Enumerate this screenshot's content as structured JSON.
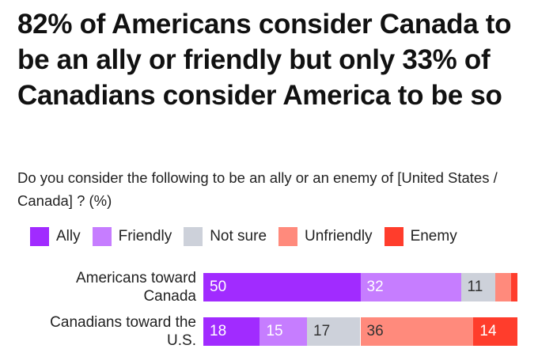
{
  "chart_data": {
    "type": "bar",
    "stacked": true,
    "orientation": "horizontal",
    "title": "82% of Americans consider Canada to be an ally or friendly but only 33% of Canadians consider America to be so",
    "subtitle": "Do you consider the following to be an ally or an enemy of [United States / Canada] ? (%)",
    "categories": [
      "Americans toward Canada",
      "Canadians toward the U.S."
    ],
    "category_lines": [
      [
        "Americans toward",
        "Canada"
      ],
      [
        "Canadians toward the",
        "U.S."
      ]
    ],
    "series": [
      {
        "name": "Ally",
        "color": "#a12bff",
        "text": "#ffffff",
        "values": [
          50,
          18
        ]
      },
      {
        "name": "Friendly",
        "color": "#c67dff",
        "text": "#ffffff",
        "values": [
          32,
          15
        ]
      },
      {
        "name": "Not sure",
        "color": "#cdd1da",
        "text": "#333333",
        "values": [
          11,
          17
        ]
      },
      {
        "name": "Unfriendly",
        "color": "#ff8a7c",
        "text": "#333333",
        "values": [
          5,
          36
        ]
      },
      {
        "name": "Enemy",
        "color": "#ff3d2c",
        "text": "#ffffff",
        "values": [
          1,
          14
        ]
      }
    ],
    "label_min": 10,
    "xlim": [
      0,
      100
    ],
    "legend": "top-left",
    "grid": false
  }
}
